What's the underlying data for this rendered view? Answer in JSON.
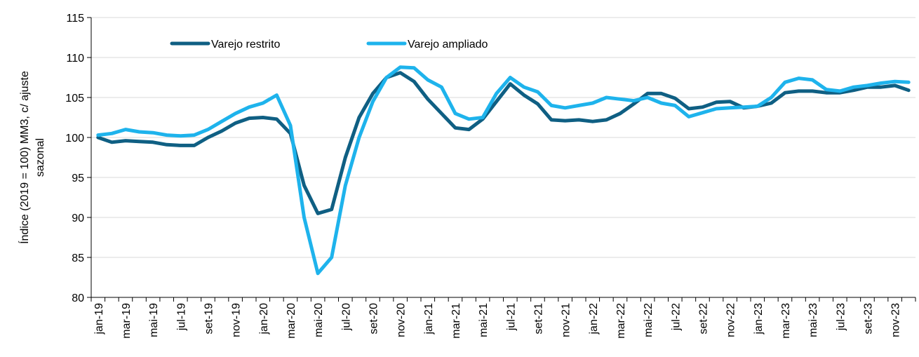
{
  "chart_data": {
    "type": "line",
    "y_label": [
      "Índice (2019 = 100) MM3, c/ ajuste",
      "sazonal"
    ],
    "categories": [
      "jan-19",
      null,
      "mar-19",
      null,
      "mai-19",
      null,
      "jul-19",
      null,
      "set-19",
      null,
      "nov-19",
      null,
      "jan-20",
      null,
      "mar-20",
      null,
      "mai-20",
      null,
      "jul-20",
      null,
      "set-20",
      null,
      "nov-20",
      null,
      "jan-21",
      null,
      "mar-21",
      null,
      "mai-21",
      null,
      "jul-21",
      null,
      "set-21",
      null,
      "nov-21",
      null,
      "jan-22",
      null,
      "mar-22",
      null,
      "mai-22",
      null,
      "jul-22",
      null,
      "set-22",
      null,
      "nov-22",
      null,
      "jan-23",
      null,
      "mar-23",
      null,
      "mai-23",
      null,
      "jul-23",
      null,
      "set-23",
      null,
      "nov-23",
      null
    ],
    "series": [
      {
        "name": "Varejo restrito",
        "color": "#0f5f83",
        "values": [
          100.0,
          99.4,
          99.6,
          99.5,
          99.4,
          99.1,
          99.0,
          99.0,
          100.0,
          100.8,
          101.8,
          102.4,
          102.5,
          102.3,
          100.5,
          94.0,
          90.5,
          91.0,
          97.5,
          102.5,
          105.5,
          107.5,
          108.1,
          107.0,
          104.8,
          103.0,
          101.2,
          101.0,
          102.3,
          104.5,
          106.7,
          105.3,
          104.2,
          102.2,
          102.1,
          102.2,
          102.0,
          102.2,
          103.0,
          104.2,
          105.5,
          105.5,
          104.9,
          103.6,
          103.8,
          104.4,
          104.5,
          103.7,
          103.9,
          104.3,
          105.6,
          105.8,
          105.8,
          105.6,
          105.6,
          105.9,
          106.3,
          106.3,
          106.5,
          105.9
        ]
      },
      {
        "name": "Varejo ampliado",
        "color": "#1eb3ec",
        "values": [
          100.3,
          100.5,
          101.0,
          100.7,
          100.6,
          100.3,
          100.2,
          100.3,
          101.0,
          102.0,
          103.0,
          103.8,
          104.3,
          105.3,
          101.5,
          90.0,
          83.0,
          85.0,
          94.0,
          100.0,
          104.5,
          107.5,
          108.8,
          108.7,
          107.2,
          106.3,
          103.0,
          102.3,
          102.5,
          105.5,
          107.5,
          106.3,
          105.7,
          104.0,
          103.7,
          104.0,
          104.3,
          105.0,
          104.8,
          104.6,
          105.0,
          104.3,
          104.0,
          102.6,
          103.1,
          103.6,
          103.7,
          103.8,
          103.9,
          105.0,
          106.9,
          107.4,
          107.2,
          106.0,
          105.8,
          106.3,
          106.5,
          106.8,
          107.0,
          106.9
        ]
      }
    ],
    "ylim": [
      80,
      115
    ],
    "yticks": [
      80,
      85,
      90,
      95,
      100,
      105,
      110,
      115
    ],
    "grid": true
  }
}
